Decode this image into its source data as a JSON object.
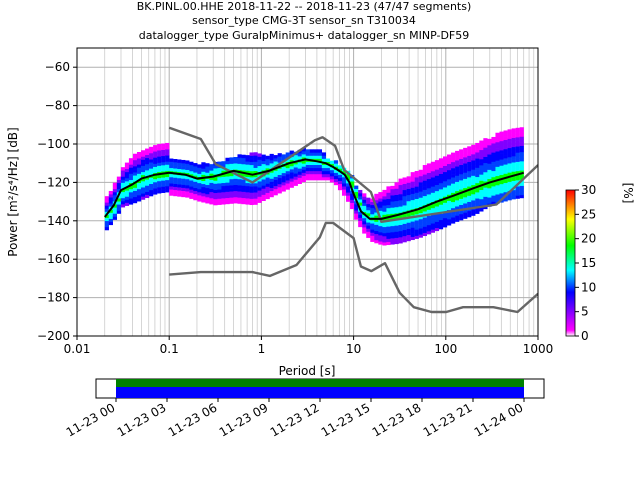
{
  "chart_data": {
    "type": "heatmap",
    "title_lines": [
      "BK.PINL.00.HHE   2018-11-22 -- 2018-11-23  (47/47 segments)",
      "sensor_type CMG-3T sensor_sn T310034",
      "datalogger_type GuralpMinimus+ datalogger_sn MINP-DF59"
    ],
    "xlabel": "Period [s]",
    "ylabel": "Power [m²/s⁴/Hz] [dB]",
    "x_scale": "log",
    "xlim": [
      0.01,
      1000
    ],
    "ylim": [
      -200,
      -50
    ],
    "x_ticks": [
      {
        "v": 0.01,
        "label": "0.01"
      },
      {
        "v": 0.1,
        "label": "0.1"
      },
      {
        "v": 1,
        "label": "1"
      },
      {
        "v": 10,
        "label": "10"
      },
      {
        "v": 100,
        "label": "100"
      },
      {
        "v": 1000,
        "label": "1000"
      }
    ],
    "y_ticks": [
      {
        "v": -60,
        "label": "−60"
      },
      {
        "v": -80,
        "label": "−80"
      },
      {
        "v": -100,
        "label": "−100"
      },
      {
        "v": -120,
        "label": "−120"
      },
      {
        "v": -140,
        "label": "−140"
      },
      {
        "v": -160,
        "label": "−160"
      },
      {
        "v": -180,
        "label": "−180"
      },
      {
        "v": -200,
        "label": "−200"
      }
    ],
    "grid": true,
    "colorbar": {
      "label": "[%]",
      "range": [
        0,
        30
      ],
      "ticks": [
        {
          "v": 0,
          "label": "0"
        },
        {
          "v": 5,
          "label": "5"
        },
        {
          "v": 10,
          "label": "10"
        },
        {
          "v": 15,
          "label": "15"
        },
        {
          "v": 20,
          "label": "20"
        },
        {
          "v": 25,
          "label": "25"
        },
        {
          "v": 30,
          "label": "30"
        }
      ],
      "colors": [
        "#ffffff",
        "#ff00ff",
        "#0000ff",
        "#00ffff",
        "#00ff00",
        "#ffff00",
        "#ff7f00",
        "#ff0000"
      ]
    },
    "series": [
      {
        "role": "new-high-noise-model",
        "color": "#666666",
        "x": [
          0.1,
          0.22,
          0.32,
          0.8,
          3.8,
          4.6,
          6.3,
          7.9,
          15.4,
          20,
          354,
          1000
        ],
        "y": [
          -91.5,
          -97.4,
          -110.5,
          -120,
          -98,
          -96.5,
          -101,
          -113.5,
          -125,
          -140.5,
          -131.5,
          -111
        ]
      },
      {
        "role": "new-low-noise-model",
        "color": "#666666",
        "x": [
          0.1,
          0.22,
          0.8,
          1.24,
          2.4,
          4.3,
          5,
          6,
          10,
          12,
          15.6,
          21.9,
          31.6,
          45,
          70,
          101,
          154,
          328,
          600,
          1000
        ],
        "y": [
          -168,
          -166.7,
          -166.7,
          -168.7,
          -163,
          -148.6,
          -141.1,
          -141.1,
          -149,
          -163.8,
          -166.2,
          -162.1,
          -177.5,
          -185,
          -187.5,
          -187.5,
          -185,
          -185,
          -187.5,
          -178
        ]
      },
      {
        "role": "mode",
        "color": "#000000",
        "x": [
          0.02,
          0.025,
          0.03,
          0.04,
          0.05,
          0.07,
          0.1,
          0.15,
          0.2,
          0.3,
          0.5,
          0.8,
          1.2,
          2,
          3,
          4,
          5,
          6,
          7,
          8,
          9,
          10,
          12,
          15,
          20,
          30,
          50,
          80,
          120,
          200,
          300,
          500,
          700
        ],
        "y": [
          -138,
          -132,
          -124,
          -121,
          -118,
          -116,
          -115,
          -116,
          -118,
          -117,
          -114,
          -116,
          -114,
          -110,
          -108,
          -109,
          -110,
          -112,
          -114,
          -116,
          -120,
          -126,
          -135,
          -139,
          -139,
          -137,
          -134,
          -130,
          -127,
          -123,
          -120,
          -117,
          -115
        ]
      }
    ],
    "density_bands": [
      {
        "x": [
          0.02,
          0.025,
          0.03,
          0.04,
          0.05,
          0.07,
          0.1
        ],
        "upper": [
          -128,
          -120,
          -112,
          -106,
          -103,
          -101,
          -100
        ],
        "lower": [
          -144,
          -138,
          -132,
          -130,
          -128,
          -125,
          -124
        ]
      },
      {
        "x": [
          0.1,
          0.15,
          0.2,
          0.3,
          0.5,
          0.8,
          1.2,
          2,
          3,
          4,
          5
        ],
        "upper": [
          -107,
          -108,
          -110,
          -110,
          -106,
          -105,
          -106,
          -104,
          -102,
          -103,
          -105
        ],
        "lower": [
          -126,
          -127,
          -129,
          -131,
          -130,
          -131,
          -127,
          -122,
          -118,
          -118,
          -118
        ]
      },
      {
        "x": [
          5,
          6,
          7,
          8,
          9,
          10,
          12,
          15,
          20,
          30,
          50,
          80,
          120,
          200,
          300,
          500,
          700
        ],
        "upper": [
          -107,
          -109,
          -111,
          -113,
          -116,
          -121,
          -126,
          -128,
          -124,
          -119,
          -113,
          -108,
          -104,
          -100,
          -96,
          -92,
          -92
        ],
        "lower": [
          -118,
          -120,
          -124,
          -128,
          -132,
          -138,
          -145,
          -150,
          -152,
          -151,
          -148,
          -144,
          -140,
          -136,
          -131,
          -128,
          -127
        ]
      }
    ],
    "timeline": {
      "tick_labels": [
        "11-23 00",
        "11-23 03",
        "11-23 06",
        "11-23 09",
        "11-23 12",
        "11-23 15",
        "11-23 18",
        "11-23 21",
        "11-24 00"
      ],
      "colors": [
        "#008000",
        "#0000ff"
      ]
    }
  }
}
